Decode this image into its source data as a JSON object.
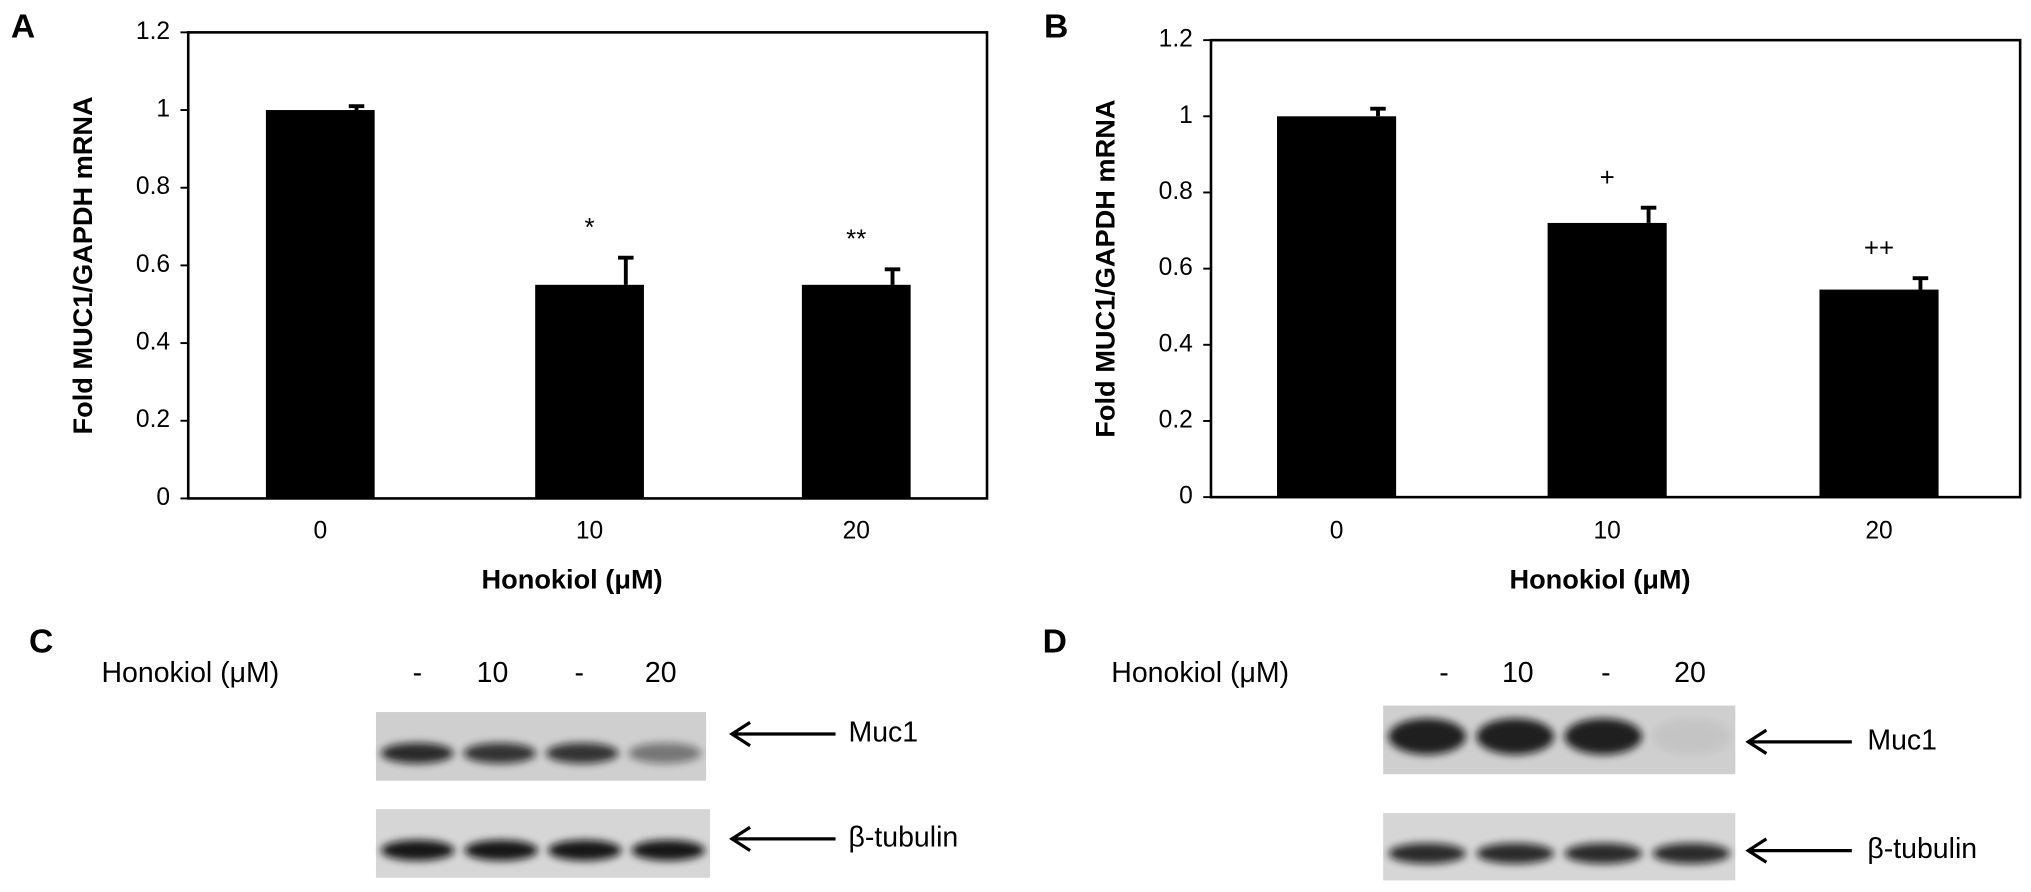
{
  "chart_data": [
    {
      "type": "bar",
      "panel": "A",
      "ylabel": "Fold MUC1/GAPDH mRNA",
      "xlabel": "Honokiol (μM)",
      "categories": [
        "0",
        "10",
        "20"
      ],
      "values": [
        1.0,
        0.55,
        0.55
      ],
      "errors": [
        0.01,
        0.07,
        0.04
      ],
      "annotations": [
        null,
        "*",
        "**"
      ],
      "color": "#000000",
      "ylim": [
        0,
        1.2
      ],
      "yticks": [
        0,
        0.2,
        0.4,
        0.6,
        0.8,
        1,
        1.2
      ]
    },
    {
      "type": "bar",
      "panel": "B",
      "ylabel": "Fold MUC1/GAPDH mRNA",
      "xlabel": "Honokiol (μM)",
      "categories": [
        "0",
        "10",
        "20"
      ],
      "values": [
        1.0,
        0.72,
        0.545
      ],
      "errors": [
        0.02,
        0.04,
        0.03
      ],
      "annotations": [
        null,
        "+",
        "++"
      ],
      "color": "#000000",
      "ylim": [
        0,
        1.2
      ],
      "yticks": [
        0,
        0.2,
        0.4,
        0.6,
        0.8,
        1,
        1.2
      ]
    }
  ],
  "blots": [
    {
      "panel": "C",
      "treatment": "Honokiol (μM)",
      "lanes": [
        "-",
        "10",
        "-",
        "20"
      ],
      "bands": [
        "Muc1",
        "β-tubulin"
      ]
    },
    {
      "panel": "D",
      "treatment": "Honokiol (μM)",
      "lanes": [
        "-",
        "10",
        "-",
        "20"
      ],
      "bands": [
        "Muc1",
        "β-tubulin"
      ]
    }
  ]
}
